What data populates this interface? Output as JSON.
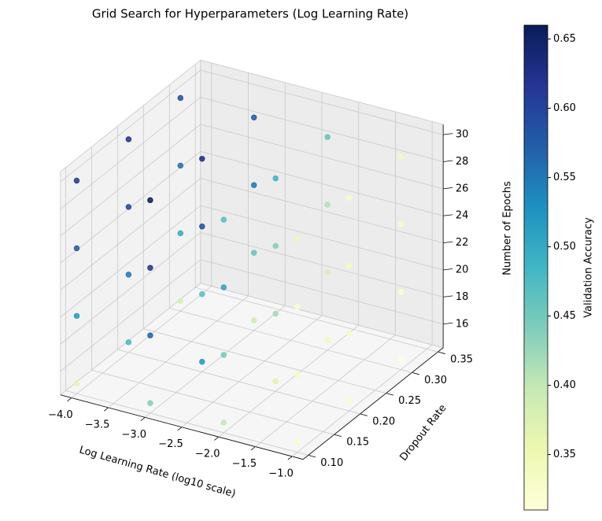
{
  "chart_data": {
    "type": "scatter3d",
    "title": "Grid Search for Hyperparameters (Log Learning Rate)",
    "x_label": "Log Learning Rate (log10 scale)",
    "y_label": "Dropout Rate",
    "z_label": "Number of Epochs",
    "colorbar_label": "Validation Accuracy",
    "colormap": "YlGnBu",
    "x": [
      -4,
      -4,
      -4,
      -4,
      -4,
      -4,
      -4,
      -4,
      -4,
      -4,
      -4,
      -4,
      -3,
      -3,
      -3,
      -3,
      -3,
      -3,
      -3,
      -3,
      -3,
      -3,
      -3,
      -3,
      -2,
      -2,
      -2,
      -2,
      -2,
      -2,
      -2,
      -2,
      -2,
      -2,
      -2,
      -2,
      -1,
      -1,
      -1,
      -1,
      -1,
      -1,
      -1,
      -1,
      -1,
      -1,
      -1,
      -1
    ],
    "y": [
      0.1,
      0.1,
      0.1,
      0.1,
      0.2,
      0.2,
      0.2,
      0.2,
      0.3,
      0.3,
      0.3,
      0.3,
      0.1,
      0.1,
      0.1,
      0.1,
      0.2,
      0.2,
      0.2,
      0.2,
      0.3,
      0.3,
      0.3,
      0.3,
      0.1,
      0.1,
      0.1,
      0.1,
      0.2,
      0.2,
      0.2,
      0.2,
      0.3,
      0.3,
      0.3,
      0.3,
      0.1,
      0.1,
      0.1,
      0.1,
      0.2,
      0.2,
      0.2,
      0.2,
      0.3,
      0.3,
      0.3,
      0.3
    ],
    "z": [
      15,
      20,
      25,
      30,
      15,
      20,
      25,
      30,
      15,
      20,
      25,
      30,
      15,
      20,
      25,
      30,
      15,
      20,
      25,
      30,
      15,
      20,
      25,
      30,
      15,
      20,
      25,
      30,
      15,
      20,
      25,
      30,
      15,
      20,
      25,
      30,
      15,
      20,
      25,
      30,
      15,
      20,
      25,
      30,
      15,
      20,
      25,
      30
    ],
    "values": [
      0.36,
      0.52,
      0.58,
      0.61,
      0.48,
      0.55,
      0.6,
      0.62,
      0.38,
      0.5,
      0.56,
      0.59,
      0.44,
      0.57,
      0.62,
      0.66,
      0.52,
      0.47,
      0.59,
      0.63,
      0.39,
      0.46,
      0.55,
      0.58,
      0.4,
      0.45,
      0.51,
      0.47,
      0.37,
      0.42,
      0.44,
      0.49,
      0.35,
      0.38,
      0.41,
      0.46,
      0.33,
      0.34,
      0.32,
      0.35,
      0.32,
      0.33,
      0.34,
      0.33,
      0.31,
      0.32,
      0.33,
      0.34
    ],
    "xlim": [
      -4.15,
      -0.85
    ],
    "ylim": [
      0.09,
      0.36
    ],
    "zlim": [
      14.25,
      30.75
    ],
    "clim": [
      0.31,
      0.66
    ],
    "xticks": [
      {
        "value": -4,
        "label": "−4.0"
      },
      {
        "value": -3.5,
        "label": "−3.5"
      },
      {
        "value": -3,
        "label": "−3.0"
      },
      {
        "value": -2.5,
        "label": "−2.5"
      },
      {
        "value": -2,
        "label": "−2.0"
      },
      {
        "value": -1.5,
        "label": "−1.5"
      },
      {
        "value": -1,
        "label": "−1.0"
      }
    ],
    "yticks": [
      {
        "value": 0.1,
        "label": "0.10"
      },
      0.15,
      {
        "value": 0.2,
        "label": "0.20"
      },
      0.25,
      {
        "value": 0.3,
        "label": "0.30"
      },
      0.35
    ],
    "zticks": [
      16,
      18,
      20,
      22,
      24,
      26,
      28,
      30
    ],
    "cticks": [
      0.35,
      {
        "value": 0.4,
        "label": "0.40"
      },
      0.45,
      {
        "value": 0.5,
        "label": "0.50"
      },
      0.55,
      {
        "value": 0.6,
        "label": "0.60"
      },
      0.65
    ],
    "grid": true
  }
}
